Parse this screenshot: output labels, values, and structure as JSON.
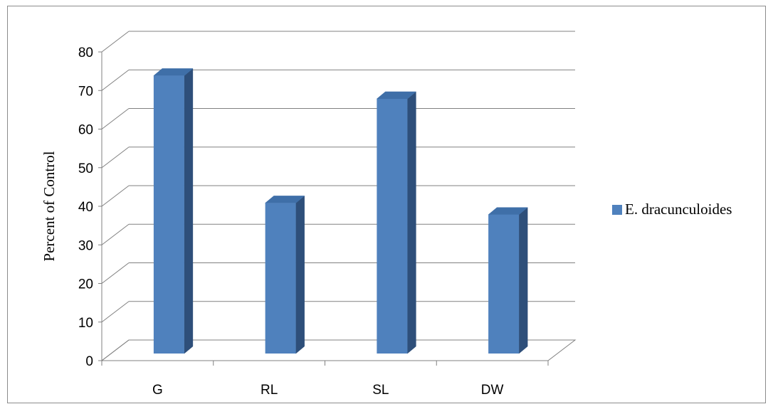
{
  "chart_data": {
    "type": "bar",
    "categories": [
      "G",
      "RL",
      "SL",
      "DW"
    ],
    "series": [
      {
        "name": "E. dracunculoides",
        "values": [
          72,
          39,
          66,
          36
        ]
      }
    ],
    "title": "",
    "xlabel": "",
    "ylabel": "Percent of Control",
    "ylim": [
      0,
      80
    ],
    "yticks": [
      "0",
      "10",
      "20",
      "30",
      "40",
      "50",
      "60",
      "70",
      "80"
    ],
    "grid": true,
    "legend_position": "right",
    "three_d": true,
    "colors": {
      "front": "#4f81bd",
      "top": "#3f6fa8",
      "side": "#2e4f7a",
      "grid": "#808080"
    }
  }
}
